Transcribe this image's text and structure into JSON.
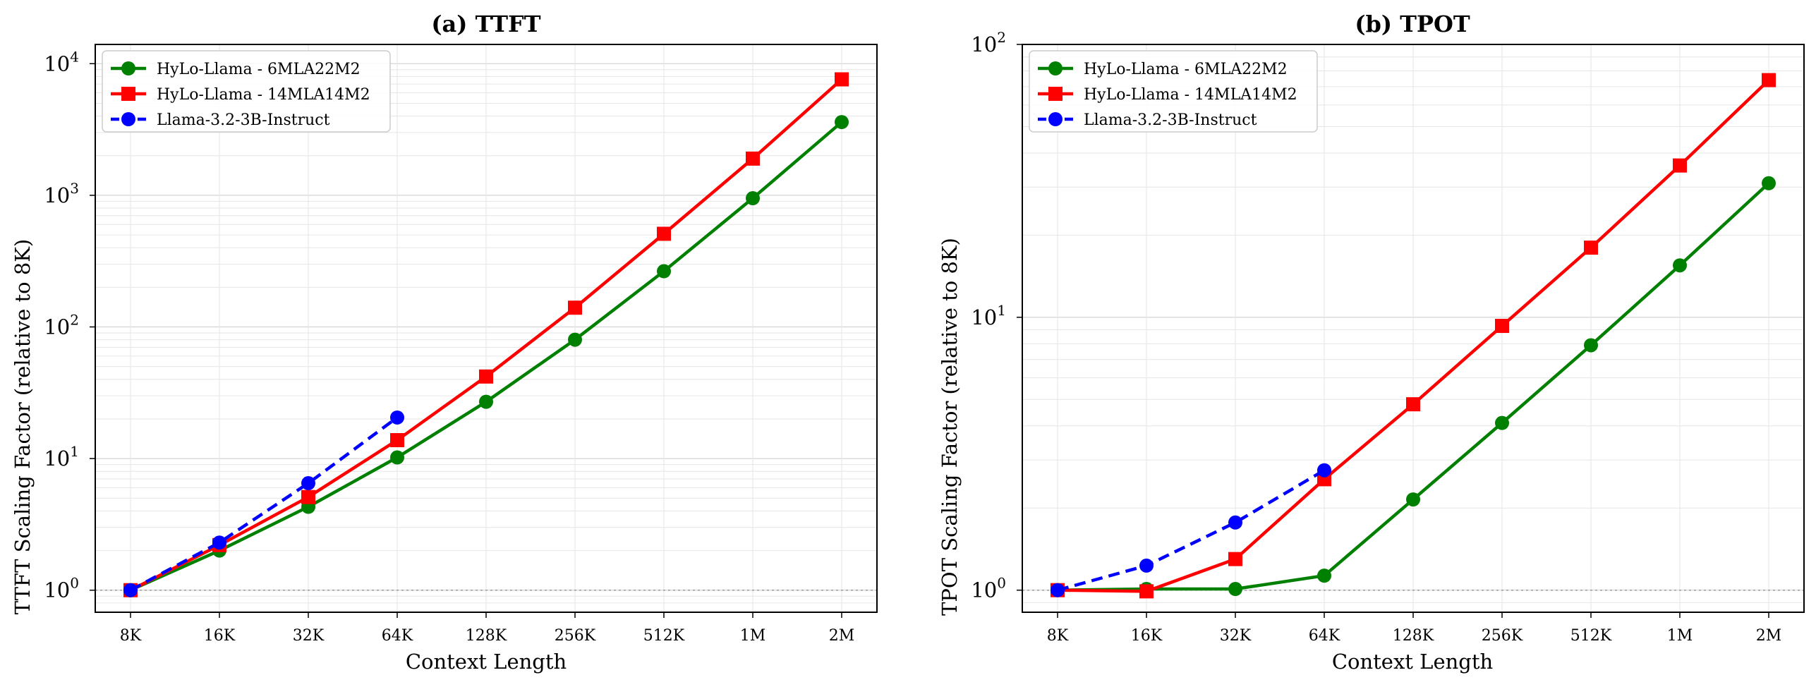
{
  "chart_data": [
    {
      "type": "line",
      "title": "(a) TTFT",
      "xlabel": "Context Length",
      "ylabel": "TTFT Scaling Factor (relative to 8K)",
      "yscale": "log",
      "ylim": [
        0.68,
        14000
      ],
      "yticks": [
        "10^0",
        "10^1",
        "10^2",
        "10^3",
        "10^4"
      ],
      "categories": [
        "8K",
        "16K",
        "32K",
        "64K",
        "128K",
        "256K",
        "512K",
        "1M",
        "2M"
      ],
      "grid": true,
      "legend": "top-left",
      "reference_line": 1.0,
      "series": [
        {
          "name": "HyLo-Llama - 6MLA22M2",
          "color": "#008000",
          "marker": "circle",
          "dashed": false,
          "values": [
            1.0,
            2.0,
            4.3,
            10.2,
            27,
            80,
            265,
            950,
            3600
          ]
        },
        {
          "name": "HyLo-Llama - 14MLA14M2",
          "color": "#ff0000",
          "marker": "square",
          "dashed": false,
          "values": [
            1.0,
            2.2,
            5.1,
            13.8,
            42,
            140,
            510,
            1900,
            7600
          ]
        },
        {
          "name": "Llama-3.2-3B-Instruct",
          "color": "#0000ff",
          "marker": "circle",
          "dashed": true,
          "values": [
            1.0,
            2.3,
            6.5,
            20.5,
            null,
            null,
            null,
            null,
            null
          ]
        }
      ]
    },
    {
      "type": "line",
      "title": "(b) TPOT",
      "xlabel": "Context Length",
      "ylabel": "TPOT Scaling Factor (relative to 8K)",
      "yscale": "log",
      "ylim": [
        0.83,
        100
      ],
      "yticks": [
        "10^0",
        "10^1"
      ],
      "categories": [
        "8K",
        "16K",
        "32K",
        "64K",
        "128K",
        "256K",
        "512K",
        "1M",
        "2M"
      ],
      "grid": true,
      "legend": "top-left",
      "reference_line": 1.0,
      "series": [
        {
          "name": "HyLo-Llama - 6MLA22M2",
          "color": "#008000",
          "marker": "circle",
          "dashed": false,
          "values": [
            1.0,
            1.01,
            1.01,
            1.13,
            2.15,
            4.1,
            7.9,
            15.5,
            31
          ]
        },
        {
          "name": "HyLo-Llama - 14MLA14M2",
          "color": "#ff0000",
          "marker": "square",
          "dashed": false,
          "values": [
            1.0,
            0.99,
            1.3,
            2.55,
            4.8,
            9.3,
            18,
            36,
            74
          ]
        },
        {
          "name": "Llama-3.2-3B-Instruct",
          "color": "#0000ff",
          "marker": "circle",
          "dashed": true,
          "values": [
            1.0,
            1.23,
            1.77,
            2.75,
            null,
            null,
            null,
            null,
            null
          ]
        }
      ]
    }
  ]
}
